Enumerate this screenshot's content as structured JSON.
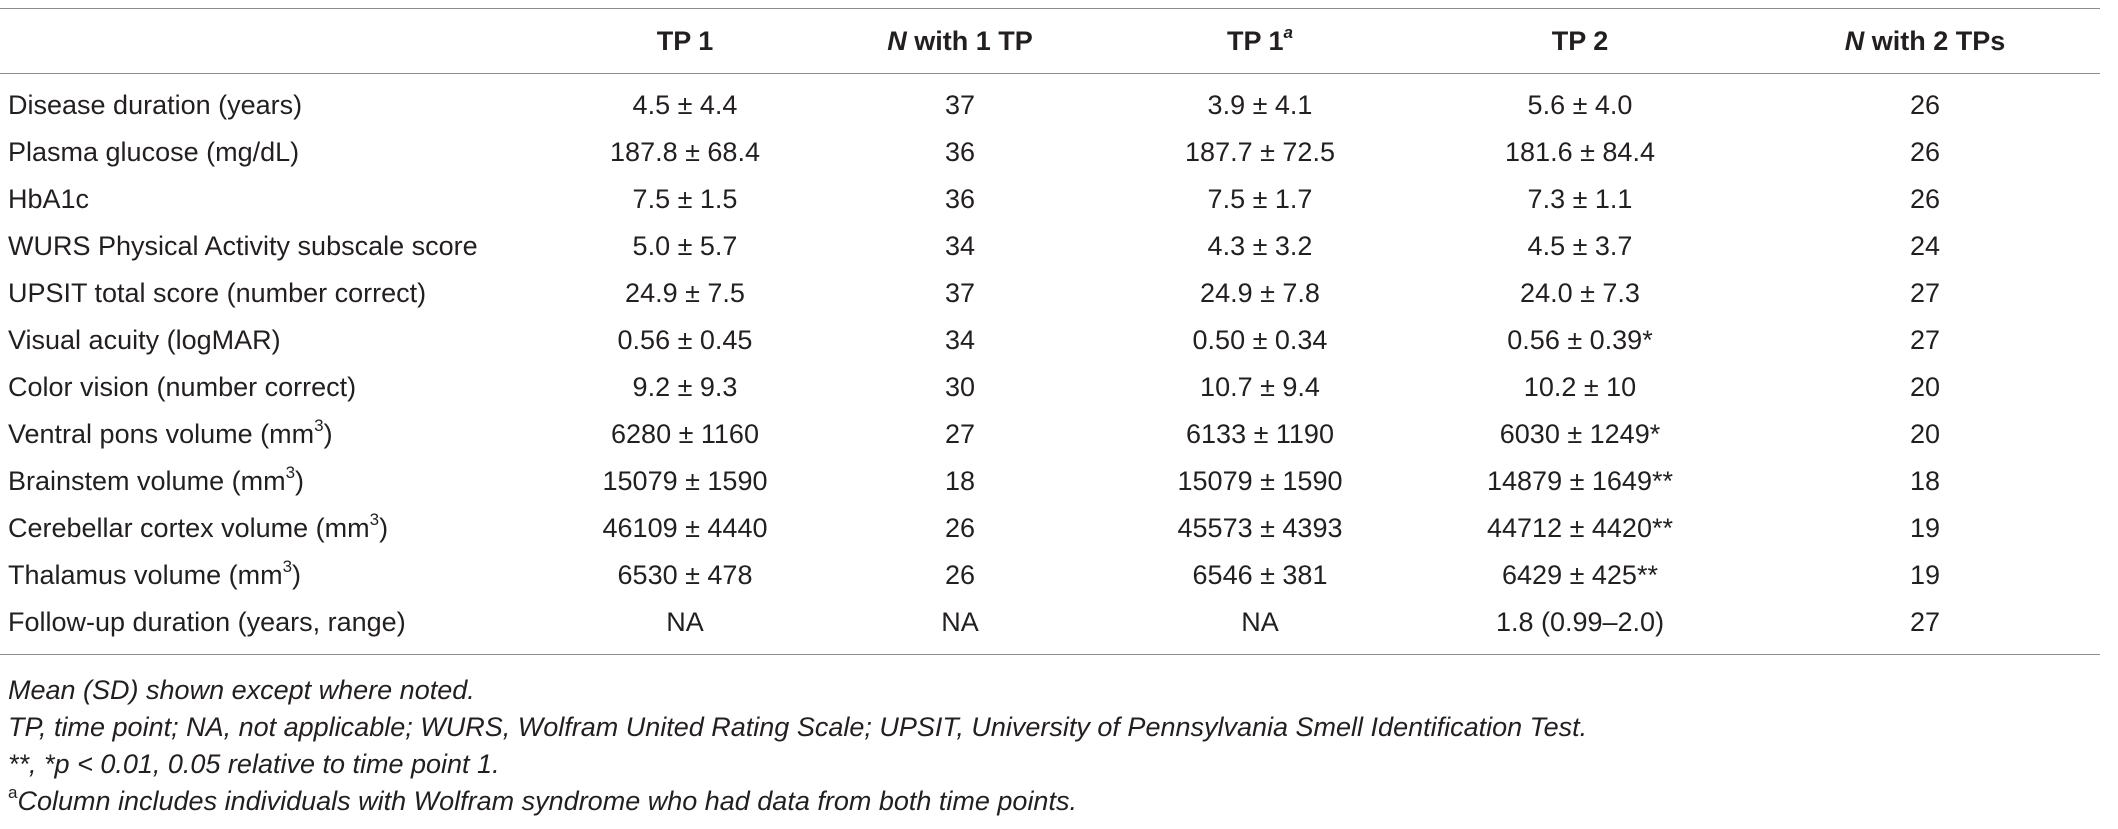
{
  "columns": [
    {
      "label": "",
      "italic_prefix": "",
      "sup": ""
    },
    {
      "label": "TP 1",
      "italic_prefix": "",
      "sup": ""
    },
    {
      "label": " with 1 TP",
      "italic_prefix": "N",
      "sup": ""
    },
    {
      "label": "TP 1",
      "italic_prefix": "",
      "sup": "a"
    },
    {
      "label": "TP 2",
      "italic_prefix": "",
      "sup": ""
    },
    {
      "label": " with 2 TPs",
      "italic_prefix": "N",
      "sup": ""
    }
  ],
  "rows": [
    {
      "label": "Disease duration (years)",
      "unit_sup": "",
      "cells": [
        "4.5 ± 4.4",
        "37",
        "3.9 ± 4.1",
        "5.6 ± 4.0",
        "26"
      ]
    },
    {
      "label": "Plasma glucose (mg/dL)",
      "unit_sup": "",
      "cells": [
        "187.8 ± 68.4",
        "36",
        "187.7 ± 72.5",
        "181.6 ± 84.4",
        "26"
      ]
    },
    {
      "label": "HbA1c",
      "unit_sup": "",
      "cells": [
        "7.5 ± 1.5",
        "36",
        "7.5 ± 1.7",
        "7.3 ± 1.1",
        "26"
      ]
    },
    {
      "label": "WURS Physical Activity subscale score",
      "unit_sup": "",
      "cells": [
        "5.0 ± 5.7",
        "34",
        "4.3 ± 3.2",
        "4.5 ± 3.7",
        "24"
      ]
    },
    {
      "label": "UPSIT total score (number correct)",
      "unit_sup": "",
      "cells": [
        "24.9 ± 7.5",
        "37",
        "24.9 ± 7.8",
        "24.0 ± 7.3",
        "27"
      ]
    },
    {
      "label": "Visual acuity (logMAR)",
      "unit_sup": "",
      "cells": [
        "0.56 ± 0.45",
        "34",
        "0.50 ± 0.34",
        "0.56 ± 0.39*",
        "27"
      ]
    },
    {
      "label": "Color vision (number correct)",
      "unit_sup": "",
      "cells": [
        "9.2 ± 9.3",
        "30",
        "10.7 ± 9.4",
        "10.2 ± 10",
        "20"
      ]
    },
    {
      "label": "Ventral pons volume (mm",
      "unit_sup": "3",
      "cells": [
        "6280 ± 1160",
        "27",
        "6133 ± 1190",
        "6030 ± 1249*",
        "20"
      ]
    },
    {
      "label": "Brainstem volume (mm",
      "unit_sup": "3",
      "cells": [
        "15079 ± 1590",
        "18",
        "15079 ± 1590",
        "14879 ± 1649**",
        "18"
      ]
    },
    {
      "label": "Cerebellar cortex volume (mm",
      "unit_sup": "3",
      "cells": [
        "46109 ± 4440",
        "26",
        "45573 ± 4393",
        "44712 ± 4420**",
        "19"
      ]
    },
    {
      "label": "Thalamus volume (mm",
      "unit_sup": "3",
      "cells": [
        "6530 ± 478",
        "26",
        "6546 ± 381",
        "6429 ± 425**",
        "19"
      ]
    },
    {
      "label": "Follow-up duration (years, range)",
      "unit_sup": "",
      "cells": [
        "NA",
        "NA",
        "NA",
        "1.8 (0.99–2.0)",
        "27"
      ]
    }
  ],
  "notes": {
    "mean_sd": "Mean (SD) shown except where noted.",
    "abbrev": "TP, time point; NA, not applicable; WURS, Wolfram United Rating Scale; UPSIT, University of Pennsylvania Smell Identification Test.",
    "sig_prefix": "**, *",
    "sig_italic": "p",
    "sig_rest": " < 0.01, 0.05 relative to time point 1.",
    "footnote_mark": "a",
    "footnote_text": "Column includes individuals with Wolfram syndrome who had data from both time points."
  }
}
